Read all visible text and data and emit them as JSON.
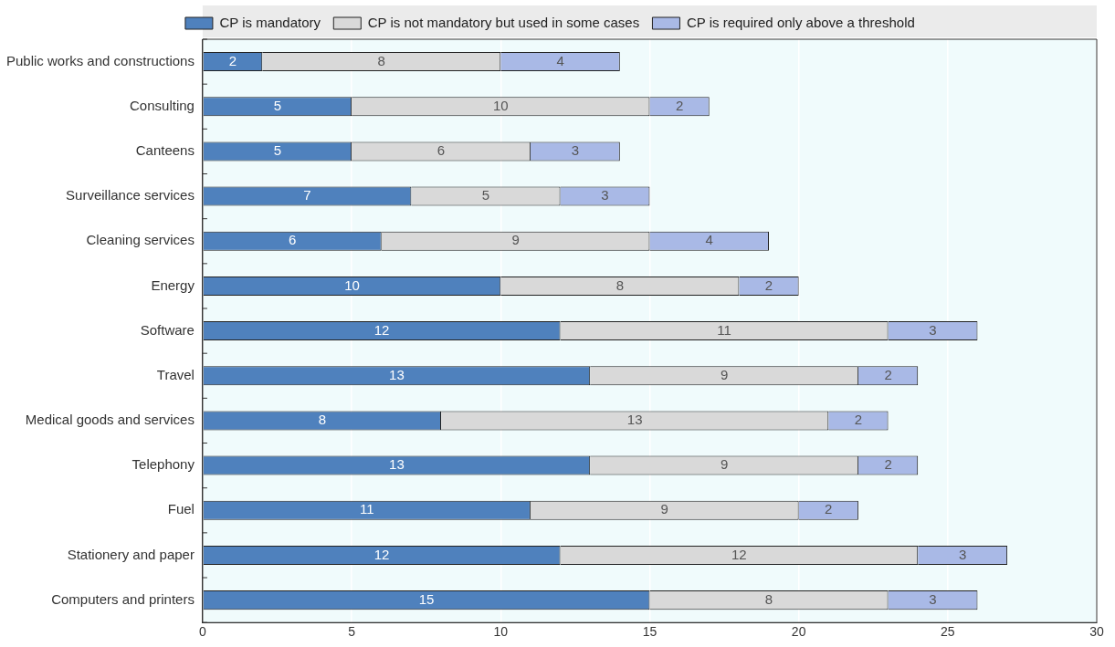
{
  "chart_data": {
    "type": "bar",
    "orientation": "horizontal",
    "stacked": true,
    "categories": [
      "Public works and constructions",
      "Consulting",
      "Canteens",
      "Surveillance services",
      "Cleaning services",
      "Energy",
      "Software",
      "Travel",
      "Medical goods and services",
      "Telephony",
      "Fuel",
      "Stationery and paper",
      "Computers and printers"
    ],
    "series": [
      {
        "name": "CP is mandatory",
        "color": "#4f81bd",
        "values": [
          2,
          5,
          5,
          7,
          6,
          10,
          12,
          13,
          8,
          13,
          11,
          12,
          15
        ]
      },
      {
        "name": "CP is not mandatory but used in some cases",
        "color": "#d9d9d9",
        "values": [
          8,
          10,
          6,
          5,
          9,
          8,
          11,
          9,
          13,
          9,
          9,
          12,
          8
        ]
      },
      {
        "name": "CP is required only above a threshold",
        "color": "#a9b9e6",
        "values": [
          4,
          2,
          3,
          3,
          4,
          2,
          3,
          2,
          2,
          2,
          2,
          3,
          3
        ]
      }
    ],
    "xlim": [
      0,
      30
    ],
    "xticks": [
      0,
      5,
      10,
      15,
      20,
      25,
      30
    ],
    "grid": "x",
    "legend": "top",
    "data_labels": true
  }
}
